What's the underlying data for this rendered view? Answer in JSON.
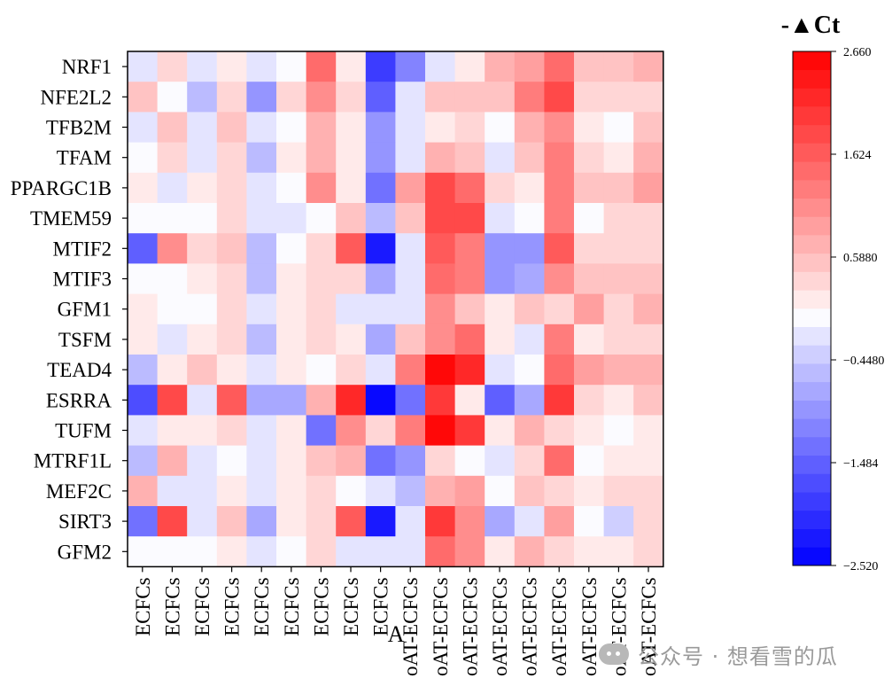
{
  "chart_data": {
    "type": "heatmap",
    "rows": [
      "NRF1",
      "NFE2L2",
      "TFB2M",
      "TFAM",
      "PPARGC1B",
      "TMEM59",
      "MTIF2",
      "MTIF3",
      "GFM1",
      "TSFM",
      "TEAD4",
      "ESRRA",
      "TUFM",
      "MTRF1L",
      "MEF2C",
      "SIRT3",
      "GFM2"
    ],
    "columns": [
      "ECFCs",
      "ECFCs",
      "ECFCs",
      "ECFCs",
      "ECFCs",
      "ECFCs",
      "ECFCs",
      "ECFCs",
      "ECFCs",
      "oAT-ECFCs",
      "oAT-ECFCs",
      "oAT-ECFCs",
      "oAT-ECFCs",
      "oAT-ECFCs",
      "oAT-ECFCs",
      "oAT-ECFCs",
      "oAT-ECFCs",
      "oAT-ECFCs"
    ],
    "values": [
      [
        -0.3,
        0.4,
        -0.2,
        0.1,
        -0.2,
        -0.1,
        1.5,
        0.1,
        -1.8,
        -1.1,
        -0.3,
        0.1,
        0.7,
        0.9,
        1.5,
        0.6,
        0.5,
        0.7
      ],
      [
        0.5,
        -0.05,
        -0.6,
        0.3,
        -0.9,
        0.3,
        1.0,
        0.3,
        -1.5,
        -0.2,
        0.6,
        0.6,
        0.6,
        1.2,
        1.9,
        0.3,
        0.3,
        0.3
      ],
      [
        -0.3,
        0.5,
        -0.2,
        0.5,
        -0.3,
        -0.1,
        0.7,
        0.1,
        -1.0,
        -0.3,
        0.1,
        0.3,
        -0.1,
        0.7,
        1.0,
        0.1,
        -0.1,
        0.5
      ],
      [
        -0.1,
        0.3,
        -0.2,
        0.3,
        -0.6,
        0.1,
        0.7,
        0.1,
        -1.0,
        -0.2,
        0.8,
        0.5,
        -0.2,
        0.5,
        1.2,
        0.3,
        0.1,
        0.7
      ],
      [
        0.1,
        -0.3,
        0.1,
        0.3,
        -0.3,
        -0.1,
        1.0,
        0.1,
        -1.3,
        0.9,
        1.8,
        1.4,
        0.4,
        0.1,
        1.2,
        0.6,
        0.6,
        0.9
      ],
      [
        -0.1,
        -0.1,
        -0.1,
        0.3,
        -0.2,
        -0.2,
        -0.1,
        0.5,
        -0.5,
        0.6,
        1.8,
        1.8,
        -0.2,
        -0.1,
        1.2,
        -0.1,
        0.3,
        0.4
      ],
      [
        -1.5,
        1.1,
        0.3,
        0.5,
        -0.5,
        -0.1,
        0.3,
        1.7,
        -2.3,
        -0.3,
        1.7,
        1.3,
        -1.0,
        -0.9,
        1.6,
        0.3,
        0.3,
        0.4
      ],
      [
        -0.1,
        -0.1,
        0.1,
        0.3,
        -0.5,
        0.1,
        0.4,
        0.3,
        -0.7,
        -0.2,
        1.4,
        1.2,
        -1.0,
        -0.8,
        1.0,
        0.5,
        0.6,
        0.6
      ],
      [
        0.1,
        -0.1,
        -0.1,
        0.3,
        -0.3,
        0.1,
        0.4,
        -0.2,
        -0.2,
        -0.3,
        1.0,
        0.5,
        0.1,
        0.5,
        0.3,
        0.9,
        0.3,
        0.7
      ],
      [
        0.1,
        -0.3,
        0.1,
        0.3,
        -0.5,
        0.1,
        0.4,
        0.1,
        -0.7,
        0.5,
        1.0,
        1.4,
        0.1,
        -0.3,
        1.2,
        0.1,
        0.4,
        0.4
      ],
      [
        -0.5,
        0.1,
        0.5,
        0.1,
        -0.3,
        0.1,
        -0.05,
        0.4,
        -0.3,
        1.3,
        2.5,
        2.2,
        -0.3,
        -0.05,
        1.5,
        0.9,
        0.7,
        0.7
      ],
      [
        -1.6,
        1.8,
        -0.2,
        1.6,
        -0.7,
        -0.7,
        0.7,
        2.2,
        -2.5,
        -1.3,
        2.1,
        0.1,
        -1.5,
        -0.7,
        2.1,
        0.4,
        0.1,
        0.5
      ],
      [
        -0.3,
        0.1,
        0.1,
        0.3,
        -0.3,
        0.1,
        -1.3,
        1.1,
        0.3,
        1.3,
        2.6,
        2.1,
        0.1,
        0.8,
        0.3,
        0.1,
        -0.05,
        0.1
      ],
      [
        -0.6,
        0.8,
        -0.2,
        -0.05,
        -0.2,
        0.1,
        0.5,
        0.7,
        -1.4,
        -0.9,
        0.3,
        -0.05,
        -0.2,
        0.3,
        1.5,
        -0.05,
        0.1,
        0.1
      ],
      [
        0.7,
        -0.2,
        -0.3,
        0.1,
        -0.3,
        0.1,
        0.3,
        -0.05,
        -0.3,
        -0.6,
        0.8,
        0.9,
        -0.05,
        0.5,
        0.3,
        0.1,
        0.3,
        0.3
      ],
      [
        -1.4,
        1.9,
        -0.3,
        0.5,
        -0.8,
        0.1,
        0.3,
        1.7,
        -2.2,
        -0.3,
        2.0,
        1.1,
        -0.7,
        -0.2,
        0.9,
        -0.05,
        -0.4,
        0.3
      ],
      [
        -0.05,
        -0.05,
        -0.05,
        0.1,
        -0.2,
        -0.05,
        0.3,
        -0.2,
        -0.2,
        -0.2,
        1.4,
        1.0,
        0.1,
        0.7,
        0.3,
        0.1,
        0.1,
        0.3
      ]
    ],
    "colorbar": {
      "title": "-▲Ct",
      "min": -2.52,
      "max": 2.66,
      "ticks": [
        "2.660",
        "1.624",
        "0.5880",
        "−0.4480",
        "−1.484",
        "−2.520"
      ],
      "tick_values": [
        2.66,
        1.624,
        0.588,
        -0.448,
        -1.484,
        -2.52
      ],
      "levels": 28,
      "low_color": "#0000ff",
      "mid_color": "#ffffff",
      "high_color": "#ff0000"
    },
    "annotation": "A",
    "grid": false,
    "legend_position": "right"
  },
  "watermark": {
    "text": "公众号 · 想看雪的瓜"
  }
}
